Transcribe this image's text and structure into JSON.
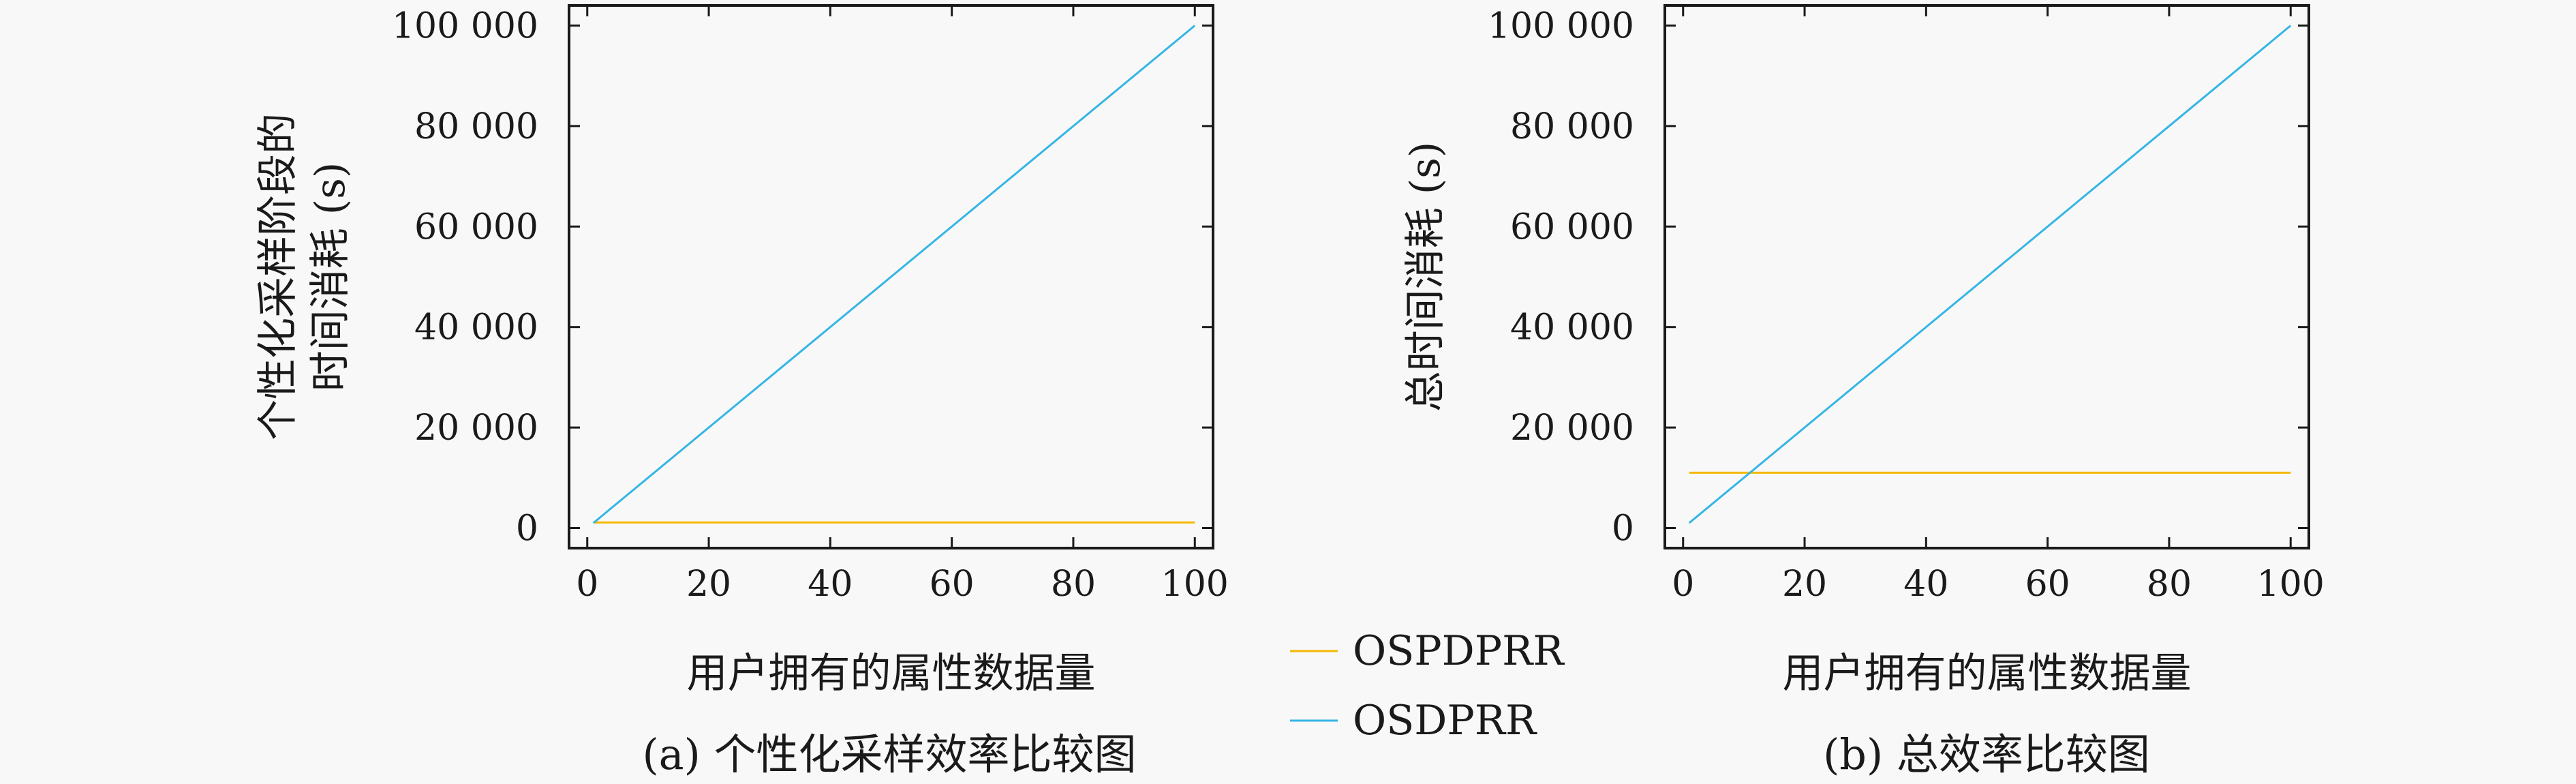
{
  "chart_data": [
    {
      "type": "line",
      "caption": "(a) 个性化采样效率比较图",
      "xlabel": "用户拥有的属性数据量",
      "ylabel_lines": [
        "个性化采样阶段的",
        "时间消耗 (s)"
      ],
      "xlim": [
        -3,
        103
      ],
      "ylim": [
        -4000,
        104000
      ],
      "xticks": [
        0,
        20,
        40,
        60,
        80,
        100
      ],
      "xtick_labels": [
        "0",
        "20",
        "40",
        "60",
        "80",
        "100"
      ],
      "yticks": [
        0,
        20000,
        40000,
        60000,
        80000,
        100000
      ],
      "ytick_labels": [
        "0",
        "20 000",
        "40 000",
        "60 000",
        "80 000",
        "100 000"
      ],
      "grid": false,
      "series": [
        {
          "name": "OSPDPRR",
          "color": "#f5b800",
          "x": [
            1,
            100
          ],
          "y": [
            1100,
            1100
          ]
        },
        {
          "name": "OSDPRR",
          "color": "#35b5e6",
          "x": [
            1,
            100
          ],
          "y": [
            1000,
            100000
          ]
        }
      ]
    },
    {
      "type": "line",
      "caption": "(b) 总效率比较图",
      "xlabel": "用户拥有的属性数据量",
      "ylabel_lines": [
        "总时间消耗 (s)"
      ],
      "xlim": [
        -3,
        103
      ],
      "ylim": [
        -4000,
        104000
      ],
      "xticks": [
        0,
        20,
        40,
        60,
        80,
        100
      ],
      "xtick_labels": [
        "0",
        "20",
        "40",
        "60",
        "80",
        "100"
      ],
      "yticks": [
        0,
        20000,
        40000,
        60000,
        80000,
        100000
      ],
      "ytick_labels": [
        "0",
        "20 000",
        "40 000",
        "60 000",
        "80 000",
        "100 000"
      ],
      "grid": false,
      "series": [
        {
          "name": "OSPDPRR",
          "color": "#f5b800",
          "x": [
            1,
            100
          ],
          "y": [
            11000,
            11000
          ]
        },
        {
          "name": "OSDPRR",
          "color": "#35b5e6",
          "x": [
            1,
            100
          ],
          "y": [
            1000,
            100000
          ]
        }
      ]
    }
  ],
  "legend": {
    "placement": "bottom-center",
    "entries": [
      {
        "label": "OSPDPRR",
        "color": "#f5b800"
      },
      {
        "label": "OSDPRR",
        "color": "#35b5e6"
      }
    ]
  }
}
